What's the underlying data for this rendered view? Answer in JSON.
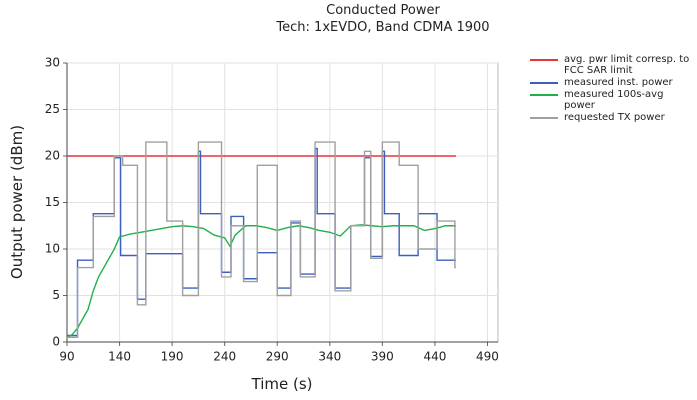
{
  "chart_data": {
    "type": "line",
    "title": "Conducted Power",
    "subtitle": "Tech: 1xEVDO, Band CDMA 1900",
    "x_label": "Time (s)",
    "y_label": "Output power (dBm)",
    "xlim": [
      90,
      500
    ],
    "ylim": [
      0,
      30
    ],
    "xticks": [
      90,
      140,
      190,
      240,
      290,
      340,
      390,
      440,
      490
    ],
    "yticks": [
      0,
      5,
      10,
      15,
      20,
      25,
      30
    ],
    "grid": true,
    "legend": "right",
    "series": [
      {
        "name": "avg. pwr limit corresp. to FCC SAR limit",
        "color": "#e8333a",
        "step": false,
        "x": [
          90,
          460
        ],
        "values": [
          20,
          20
        ]
      },
      {
        "name": "measured inst. power",
        "color": "#3b5fc0",
        "step": true,
        "x": [
          90,
          100,
          115,
          135,
          141,
          157,
          165,
          185,
          200,
          215,
          217,
          237,
          246,
          258,
          271,
          290,
          303,
          312,
          326,
          328,
          345,
          360,
          373,
          379,
          390,
          392,
          406,
          424,
          442,
          460
        ],
        "values": [
          0.7,
          8.8,
          13.8,
          19.8,
          9.3,
          4.6,
          9.5,
          9.5,
          5.8,
          20.5,
          13.8,
          7.5,
          13.5,
          6.8,
          9.6,
          5.8,
          12.8,
          7.3,
          20.8,
          13.8,
          5.8,
          12.5,
          19.8,
          9.2,
          20.5,
          13.8,
          9.3,
          13.8,
          8.8,
          8.8
        ]
      },
      {
        "name": "measured 100s-avg power",
        "color": "#22b04b",
        "step": false,
        "x": [
          90,
          95,
          100,
          105,
          110,
          115,
          120,
          125,
          130,
          135,
          140,
          150,
          160,
          170,
          180,
          190,
          200,
          210,
          220,
          230,
          240,
          245,
          250,
          260,
          270,
          280,
          290,
          300,
          310,
          320,
          330,
          340,
          350,
          360,
          370,
          380,
          390,
          400,
          410,
          420,
          430,
          440,
          450,
          460
        ],
        "values": [
          0.5,
          0.8,
          1.5,
          2.5,
          3.5,
          5.5,
          7,
          8,
          9,
          10,
          11.3,
          11.6,
          11.8,
          12,
          12.2,
          12.4,
          12.5,
          12.4,
          12.2,
          11.5,
          11.2,
          10.3,
          11.5,
          12.5,
          12.5,
          12.3,
          12,
          12.3,
          12.5,
          12.3,
          12,
          11.8,
          11.4,
          12.5,
          12.6,
          12.5,
          12.4,
          12.5,
          12.5,
          12.5,
          12,
          12.2,
          12.5,
          12.5
        ]
      },
      {
        "name": "requested TX power",
        "color": "#a0a0a0",
        "step": true,
        "x": [
          90,
          100,
          115,
          135,
          143,
          157,
          165,
          185,
          200,
          215,
          237,
          246,
          258,
          271,
          290,
          303,
          312,
          326,
          345,
          360,
          373,
          379,
          390,
          406,
          424,
          442,
          459,
          460
        ],
        "values": [
          0.5,
          8,
          13.5,
          20,
          19,
          4,
          21.5,
          13,
          5,
          21.5,
          7,
          12.5,
          6.5,
          19,
          5,
          13,
          7,
          21.5,
          5.5,
          12.5,
          20.5,
          9,
          21.5,
          19,
          10,
          13,
          8,
          8
        ]
      }
    ]
  }
}
